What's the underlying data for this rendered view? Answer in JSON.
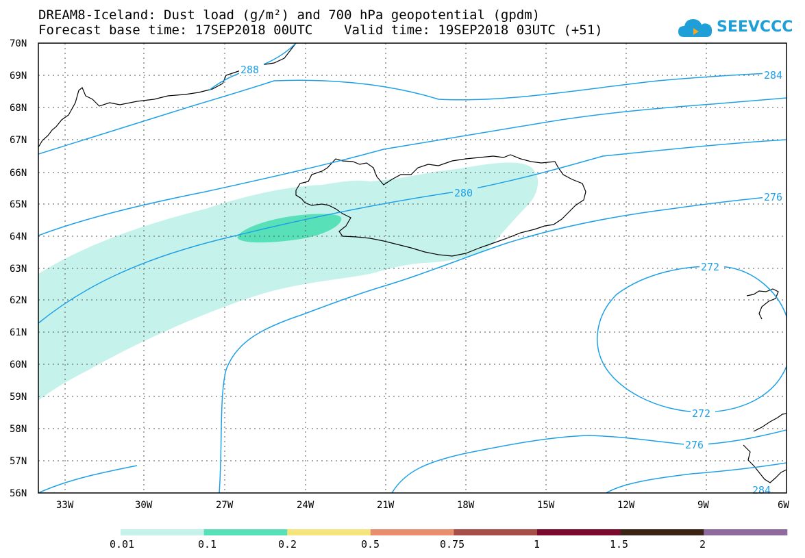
{
  "title": {
    "line1": "DREAM8-Iceland: Dust load (g/m²) and 700 hPa geopotential (gpdm)",
    "line2": "Forecast base time: 17SEP2018 00UTC    Valid time: 19SEP2018 03UTC (+51)"
  },
  "logo": {
    "text": "SEEVCCC",
    "color": "#1e9fd8",
    "icon": "cloud-icon"
  },
  "map": {
    "lat_labels": [
      "70N",
      "69N",
      "68N",
      "67N",
      "66N",
      "65N",
      "64N",
      "63N",
      "62N",
      "61N",
      "60N",
      "59N",
      "58N",
      "57N",
      "56N"
    ],
    "lon_labels": [
      "33W",
      "30W",
      "27W",
      "24W",
      "21W",
      "18W",
      "15W",
      "12W",
      "9W",
      "6W"
    ],
    "contour_labels": [
      "288",
      "284",
      "280",
      "276",
      "272",
      "272",
      "276",
      "284"
    ],
    "contour_color": "#1ea0e6",
    "coastline_color": "#000000"
  },
  "colorbar": {
    "labels": [
      "0.01",
      "0.1",
      "0.2",
      "0.5",
      "0.75",
      "1",
      "1.5",
      "2"
    ],
    "colors": [
      "#c6f2ec",
      "#58e0b8",
      "#f5e57c",
      "#e88e6c",
      "#a84e48",
      "#7a0a2e",
      "#3b2414",
      "#8e6a9e"
    ]
  }
}
